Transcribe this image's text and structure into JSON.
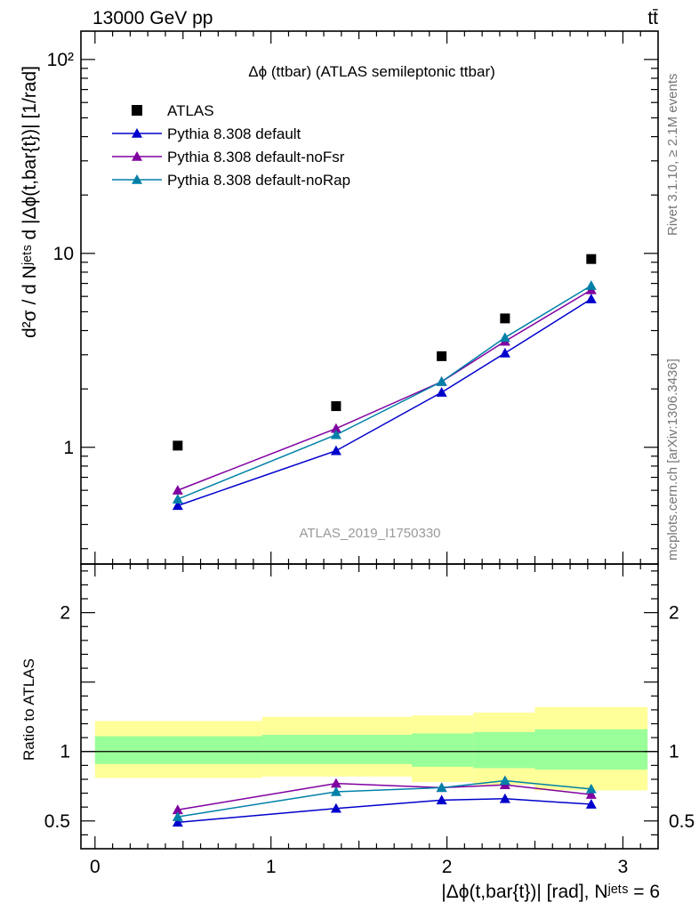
{
  "header": {
    "energy": "13000 GeV pp",
    "process": "tt̄"
  },
  "side_notes": {
    "rivet": "Rivet 3.1.10, ≥ 2.1M events",
    "mcplots": "mcplots.cern.ch [arXiv:1306.3436]"
  },
  "analysis_id": "ATLAS_2019_I1750330",
  "colors": {
    "data": "#000000",
    "pythia_default": "#0000cc",
    "pythia_nofsr": "#8000a0",
    "pythia_norap": "#0080a8",
    "band_stat": "#99ff99",
    "band_total": "#ffff99"
  },
  "chart_data": [
    {
      "type": "scatter",
      "panel": "main",
      "title": "Δϕ (ttbar) (ATLAS semileptonic ttbar)",
      "ylabel": "d²σ / d Nʲᵉᵗˢ d |Δϕ(t,bar{t})| [1/rad]",
      "yscale": "log",
      "ylim": [
        0.25,
        140
      ],
      "xlim": [
        -0.08,
        3.2
      ],
      "y_ticks": [
        {
          "value": 1,
          "label": "1"
        },
        {
          "value": 10,
          "label": "10"
        },
        {
          "value": 100,
          "label": "10²"
        }
      ],
      "legend_position": "top-left",
      "series": [
        {
          "name": "ATLAS",
          "marker": "square",
          "x": [
            0.47,
            1.37,
            1.97,
            2.33,
            2.82
          ],
          "values": [
            1.02,
            1.63,
            2.95,
            4.62,
            9.35
          ]
        },
        {
          "name": "Pythia 8.308 default",
          "marker": "triangle",
          "x": [
            0.47,
            1.37,
            1.97,
            2.33,
            2.82
          ],
          "values": [
            0.5,
            0.96,
            1.92,
            3.06,
            5.82
          ]
        },
        {
          "name": "Pythia 8.308 default-noFsr",
          "marker": "triangle",
          "x": [
            0.47,
            1.37,
            1.97,
            2.33,
            2.82
          ],
          "values": [
            0.6,
            1.25,
            2.18,
            3.52,
            6.48
          ]
        },
        {
          "name": "Pythia 8.308 default-noRap",
          "marker": "triangle",
          "x": [
            0.47,
            1.37,
            1.97,
            2.33,
            2.82
          ],
          "values": [
            0.54,
            1.16,
            2.18,
            3.68,
            6.82
          ]
        }
      ]
    },
    {
      "type": "line",
      "panel": "ratio",
      "ylabel": "Ratio to ATLAS",
      "xlabel": "|Δϕ(t,bar{t})| [rad], Nʲᵉᵗˢ = 6",
      "ylim": [
        0.3,
        2.35
      ],
      "xlim": [
        -0.08,
        3.2
      ],
      "x_ticks": [
        {
          "value": 0,
          "label": "0"
        },
        {
          "value": 1,
          "label": "1"
        },
        {
          "value": 2,
          "label": "2"
        },
        {
          "value": 3,
          "label": "3"
        }
      ],
      "y_ticks": [
        {
          "value": 0.5,
          "label": "0.5"
        },
        {
          "value": 1,
          "label": "1"
        },
        {
          "value": 2,
          "label": "2"
        }
      ],
      "bands": [
        {
          "x0": 0.0,
          "x1": 0.95,
          "stat": [
            0.91,
            1.11
          ],
          "total": [
            0.81,
            1.22
          ]
        },
        {
          "x0": 0.95,
          "x1": 1.8,
          "stat": [
            0.91,
            1.12
          ],
          "total": [
            0.82,
            1.25
          ]
        },
        {
          "x0": 1.8,
          "x1": 2.15,
          "stat": [
            0.89,
            1.13
          ],
          "total": [
            0.78,
            1.26
          ]
        },
        {
          "x0": 2.15,
          "x1": 2.5,
          "stat": [
            0.88,
            1.14
          ],
          "total": [
            0.76,
            1.28
          ]
        },
        {
          "x0": 2.5,
          "x1": 3.14,
          "stat": [
            0.87,
            1.16
          ],
          "total": [
            0.72,
            1.32
          ]
        }
      ],
      "series": [
        {
          "name": "Pythia 8.308 default",
          "x": [
            0.47,
            1.37,
            1.97,
            2.33,
            2.82
          ],
          "values": [
            0.49,
            0.59,
            0.65,
            0.66,
            0.62
          ]
        },
        {
          "name": "Pythia 8.308 default-noFsr",
          "x": [
            0.47,
            1.37,
            1.97,
            2.33,
            2.82
          ],
          "values": [
            0.58,
            0.77,
            0.74,
            0.76,
            0.69
          ]
        },
        {
          "name": "Pythia 8.308 default-noRap",
          "x": [
            0.47,
            1.37,
            1.97,
            2.33,
            2.82
          ],
          "values": [
            0.53,
            0.71,
            0.74,
            0.79,
            0.73
          ]
        }
      ]
    }
  ]
}
